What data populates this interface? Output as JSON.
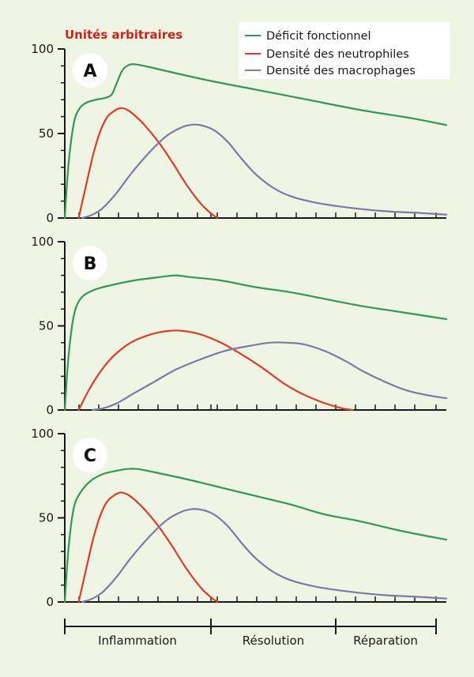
{
  "unit_label": "Unités arbitraires",
  "colors": {
    "background": "#eef5e3",
    "green": "#2e9a52",
    "red": "#e03a2a",
    "purple": "#7c78ae",
    "unit_label": "#d41f1f",
    "axis": "#1a1a1a"
  },
  "legend": [
    {
      "label": "Déficit fonctionnel",
      "color": "#2e9a52"
    },
    {
      "label": "Densité des neutrophiles",
      "color": "#e03a2a"
    },
    {
      "label": "Densité des macrophages",
      "color": "#7c78ae"
    }
  ],
  "phases": [
    "Inflammation",
    "Résolution",
    "Réparation"
  ],
  "chart_data": [
    {
      "type": "line",
      "panel": "A",
      "ylim": [
        0,
        100
      ],
      "y_ticks": [
        "0",
        "50",
        "100"
      ],
      "series": [
        {
          "name": "Déficit fonctionnel",
          "color": "#2e9a52",
          "points": [
            [
              0,
              0
            ],
            [
              2,
              30
            ],
            [
              5,
              55
            ],
            [
              8,
              64
            ],
            [
              12,
              68
            ],
            [
              18,
              70
            ],
            [
              23,
              71
            ],
            [
              27,
              73
            ],
            [
              30,
              80
            ],
            [
              33,
              87
            ],
            [
              36,
              90
            ],
            [
              40,
              91
            ],
            [
              50,
              89
            ],
            [
              80,
              82
            ],
            [
              110,
              76
            ],
            [
              140,
              70
            ],
            [
              170,
              64
            ],
            [
              200,
              59
            ],
            [
              220,
              55
            ]
          ]
        },
        {
          "name": "Densité des neutrophiles",
          "color": "#e03a2a",
          "points": [
            [
              8,
              0
            ],
            [
              12,
              18
            ],
            [
              16,
              36
            ],
            [
              20,
              50
            ],
            [
              24,
              59
            ],
            [
              28,
              63
            ],
            [
              32,
              65
            ],
            [
              36,
              64
            ],
            [
              40,
              61
            ],
            [
              46,
              55
            ],
            [
              54,
              45
            ],
            [
              62,
              33
            ],
            [
              70,
              20
            ],
            [
              78,
              9
            ],
            [
              84,
              3
            ],
            [
              88,
              0
            ]
          ]
        },
        {
          "name": "Densité des macrophages",
          "color": "#7c78ae",
          "points": [
            [
              10,
              0
            ],
            [
              16,
              2
            ],
            [
              22,
              6
            ],
            [
              30,
              15
            ],
            [
              38,
              26
            ],
            [
              48,
              38
            ],
            [
              58,
              48
            ],
            [
              66,
              53
            ],
            [
              72,
              55
            ],
            [
              78,
              55
            ],
            [
              86,
              52
            ],
            [
              94,
              45
            ],
            [
              102,
              35
            ],
            [
              110,
              26
            ],
            [
              120,
              18
            ],
            [
              130,
              13
            ],
            [
              145,
              9
            ],
            [
              165,
              6
            ],
            [
              185,
              4
            ],
            [
              205,
              3
            ],
            [
              220,
              2
            ]
          ]
        }
      ]
    },
    {
      "type": "line",
      "panel": "B",
      "ylim": [
        0,
        100
      ],
      "y_ticks": [
        "0",
        "50",
        "100"
      ],
      "series": [
        {
          "name": "Déficit fonctionnel",
          "color": "#2e9a52",
          "points": [
            [
              0,
              0
            ],
            [
              2,
              30
            ],
            [
              5,
              55
            ],
            [
              9,
              66
            ],
            [
              16,
              71
            ],
            [
              26,
              74
            ],
            [
              40,
              77
            ],
            [
              55,
              79
            ],
            [
              64,
              80
            ],
            [
              72,
              79
            ],
            [
              90,
              77
            ],
            [
              110,
              73
            ],
            [
              130,
              70
            ],
            [
              150,
              66
            ],
            [
              170,
              62
            ],
            [
              195,
              58
            ],
            [
              220,
              54
            ]
          ]
        },
        {
          "name": "Densité des neutrophiles",
          "color": "#e03a2a",
          "points": [
            [
              8,
              0
            ],
            [
              14,
              12
            ],
            [
              20,
              22
            ],
            [
              28,
              32
            ],
            [
              38,
              40
            ],
            [
              50,
              45
            ],
            [
              60,
              47
            ],
            [
              68,
              47
            ],
            [
              78,
              45
            ],
            [
              90,
              40
            ],
            [
              102,
              33
            ],
            [
              114,
              25
            ],
            [
              126,
              16
            ],
            [
              138,
              9
            ],
            [
              150,
              4
            ],
            [
              160,
              1
            ],
            [
              166,
              0
            ]
          ]
        },
        {
          "name": "Densité des macrophages",
          "color": "#7c78ae",
          "points": [
            [
              16,
              0
            ],
            [
              22,
              1
            ],
            [
              30,
              4
            ],
            [
              40,
              10
            ],
            [
              52,
              17
            ],
            [
              64,
              24
            ],
            [
              78,
              30
            ],
            [
              92,
              35
            ],
            [
              106,
              38
            ],
            [
              118,
              40
            ],
            [
              128,
              40
            ],
            [
              138,
              39
            ],
            [
              150,
              35
            ],
            [
              162,
              29
            ],
            [
              172,
              23
            ],
            [
              184,
              17
            ],
            [
              196,
              12
            ],
            [
              208,
              9
            ],
            [
              220,
              7
            ]
          ]
        }
      ]
    },
    {
      "type": "line",
      "panel": "C",
      "ylim": [
        0,
        100
      ],
      "y_ticks": [
        "0",
        "50",
        "100"
      ],
      "series": [
        {
          "name": "Déficit fonctionnel",
          "color": "#2e9a52",
          "points": [
            [
              0,
              0
            ],
            [
              2,
              30
            ],
            [
              5,
              55
            ],
            [
              9,
              65
            ],
            [
              15,
              72
            ],
            [
              22,
              76
            ],
            [
              30,
              78
            ],
            [
              36,
              79
            ],
            [
              42,
              79
            ],
            [
              52,
              77
            ],
            [
              70,
              73
            ],
            [
              90,
              68
            ],
            [
              110,
              63
            ],
            [
              130,
              58
            ],
            [
              150,
              52
            ],
            [
              170,
              48
            ],
            [
              195,
              42
            ],
            [
              220,
              37
            ]
          ]
        },
        {
          "name": "Densité des neutrophiles",
          "color": "#e03a2a",
          "points": [
            [
              8,
              0
            ],
            [
              12,
              18
            ],
            [
              16,
              36
            ],
            [
              20,
              50
            ],
            [
              24,
              59
            ],
            [
              28,
              63
            ],
            [
              32,
              65
            ],
            [
              36,
              64
            ],
            [
              40,
              61
            ],
            [
              46,
              55
            ],
            [
              54,
              45
            ],
            [
              62,
              33
            ],
            [
              70,
              20
            ],
            [
              78,
              9
            ],
            [
              84,
              3
            ],
            [
              88,
              0
            ]
          ]
        },
        {
          "name": "Densité des macrophages",
          "color": "#7c78ae",
          "points": [
            [
              10,
              0
            ],
            [
              16,
              2
            ],
            [
              22,
              6
            ],
            [
              30,
              15
            ],
            [
              38,
              26
            ],
            [
              48,
              38
            ],
            [
              58,
              48
            ],
            [
              66,
              53
            ],
            [
              72,
              55
            ],
            [
              78,
              55
            ],
            [
              86,
              52
            ],
            [
              94,
              45
            ],
            [
              102,
              35
            ],
            [
              110,
              26
            ],
            [
              120,
              18
            ],
            [
              130,
              13
            ],
            [
              145,
              9
            ],
            [
              165,
              6
            ],
            [
              185,
              4
            ],
            [
              205,
              3
            ],
            [
              220,
              2
            ]
          ]
        }
      ]
    }
  ]
}
